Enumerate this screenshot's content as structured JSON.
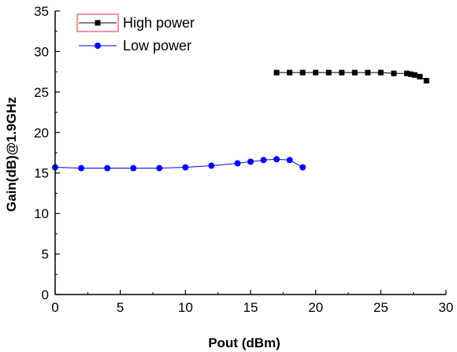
{
  "chart_data": {
    "type": "line",
    "title": "",
    "xlabel": "Pout (dBm)",
    "ylabel": "Gain(dB)@1.9GHz",
    "xlim": [
      0,
      30
    ],
    "ylim": [
      0,
      35
    ],
    "xticks": [
      0,
      5,
      10,
      15,
      20,
      25,
      30
    ],
    "yticks": [
      0,
      5,
      10,
      15,
      20,
      25,
      30,
      35
    ],
    "grid": false,
    "legend_position": "top-left",
    "series": [
      {
        "name": "High power",
        "marker": "square",
        "color": "#000000",
        "x": [
          17,
          18,
          19,
          20,
          21,
          22,
          23,
          24,
          25,
          26,
          27,
          27.3,
          27.6,
          28,
          28.5
        ],
        "y": [
          27.4,
          27.4,
          27.4,
          27.4,
          27.4,
          27.4,
          27.4,
          27.4,
          27.4,
          27.3,
          27.3,
          27.2,
          27.1,
          26.9,
          26.4
        ]
      },
      {
        "name": "Low power",
        "marker": "circle",
        "color": "#0000ff",
        "x": [
          0,
          2,
          4,
          6,
          8,
          10,
          12,
          14,
          15,
          16,
          17,
          18,
          19
        ],
        "y": [
          15.7,
          15.6,
          15.6,
          15.6,
          15.6,
          15.7,
          15.9,
          16.2,
          16.4,
          16.6,
          16.7,
          16.6,
          15.7
        ]
      }
    ]
  }
}
